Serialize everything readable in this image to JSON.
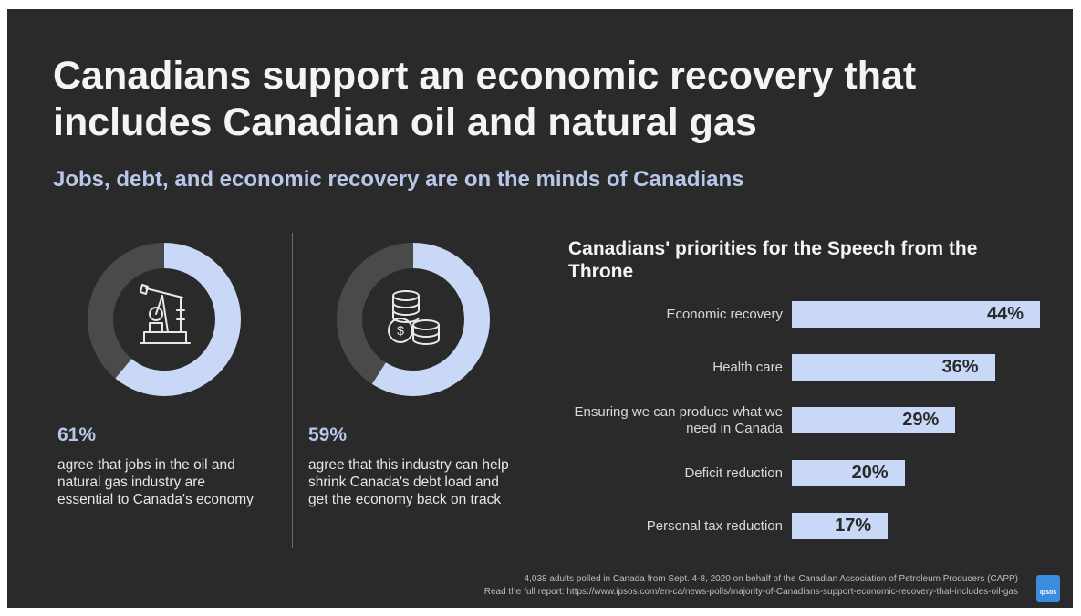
{
  "title": "Canadians support an economic recovery that includes Canadian oil and natural gas",
  "subtitle": "Jobs, debt, and economic recovery are on the minds of Canadians",
  "colors": {
    "background": "#2a2a2a",
    "accent": "#c9d8f7",
    "ring_remainder": "#4a4a4a"
  },
  "stats": [
    {
      "value": "61%",
      "percent": 61,
      "icon": "oil-pump-icon",
      "text": "agree that jobs in the oil and natural gas industry are essential to Canada's economy"
    },
    {
      "value": "59%",
      "percent": 59,
      "icon": "coins-stack-icon",
      "text": "agree that this industry can help shrink Canada's debt load and get the economy back on track"
    }
  ],
  "chart_data": {
    "type": "bar",
    "orientation": "horizontal",
    "title": "Canadians' priorities for the Speech from the Throne",
    "categories": [
      "Economic recovery",
      "Health care",
      "Ensuring we can produce what we need in Canada",
      "Deficit reduction",
      "Personal tax reduction"
    ],
    "values": [
      44,
      36,
      29,
      20,
      17
    ],
    "value_labels": [
      "44%",
      "36%",
      "29%",
      "20%",
      "17%"
    ],
    "xlim": [
      0,
      44
    ],
    "grid": false,
    "legend": "none"
  },
  "footer": {
    "line1": "4,038 adults polled in Canada from Sept. 4-8, 2020 on behalf of the Canadian Association of Petroleum Producers (CAPP)",
    "line2": "Read the full report: https://www.ipsos.com/en-ca/news-polls/majority-of-Canadians-support-economic-recovery-that-includes-oil-gas"
  },
  "logo_text": "Ipsos"
}
